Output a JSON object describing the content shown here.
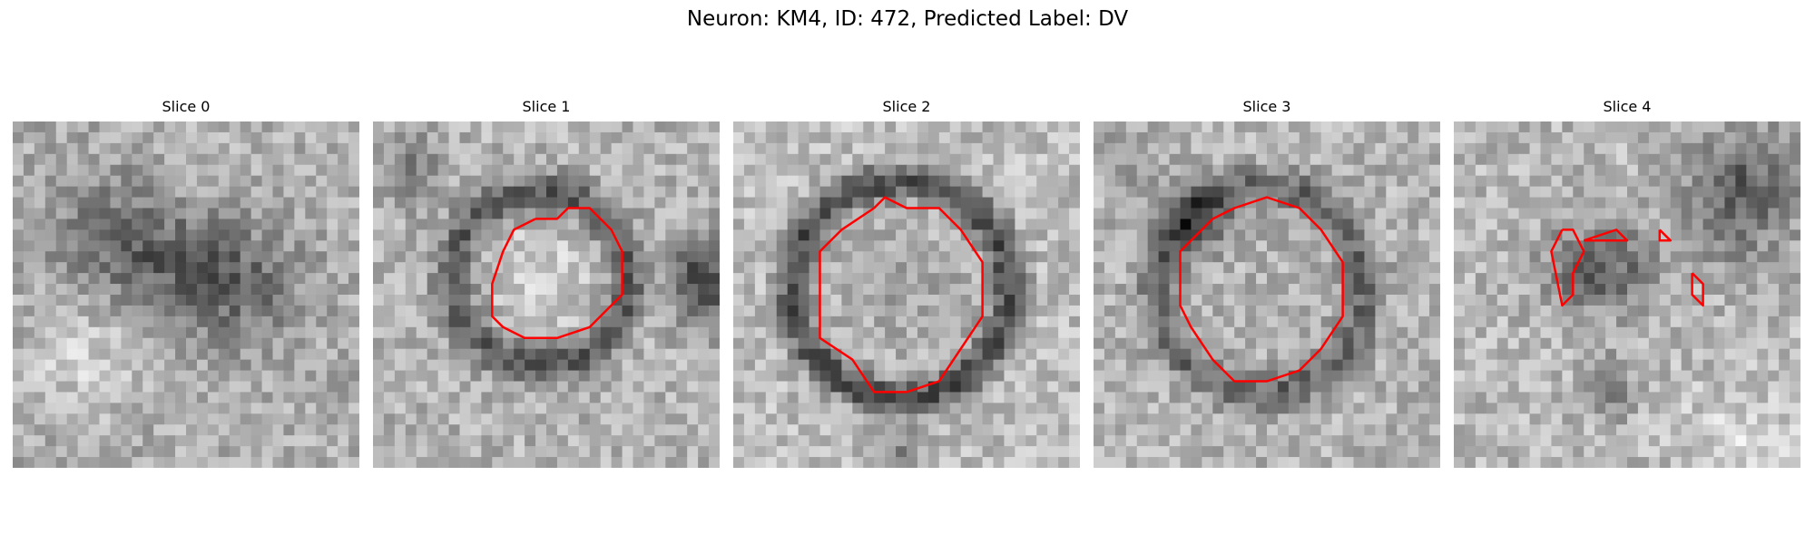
{
  "figure": {
    "title": "Neuron: KM4, ID: 472, Predicted Label: DV"
  },
  "colors": {
    "contour": "#ff0000",
    "background": "#ffffff"
  },
  "panels": [
    {
      "title": "Slice 0",
      "has_contour": false
    },
    {
      "title": "Slice 1",
      "has_contour": true
    },
    {
      "title": "Slice 2",
      "has_contour": true
    },
    {
      "title": "Slice 3",
      "has_contour": true
    },
    {
      "title": "Slice 4",
      "has_contour": true
    }
  ]
}
